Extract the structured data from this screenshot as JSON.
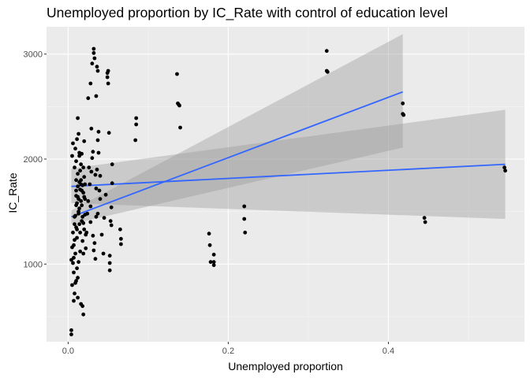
{
  "chart_data": {
    "type": "scatter",
    "title": "Unemployed proportion by IC_Rate with control of education level",
    "xlabel": "Unemployed proportion",
    "ylabel": "IC_Rate",
    "xlim": [
      -0.027,
      0.57
    ],
    "ylim": [
      260,
      3260
    ],
    "x_ticks": [
      0.0,
      0.2,
      0.4
    ],
    "x_tick_labels": [
      "0.0",
      "0.2",
      "0.4"
    ],
    "y_ticks": [
      1000,
      2000,
      3000
    ],
    "y_tick_labels": [
      "1000",
      "2000",
      "3000"
    ],
    "grid": true,
    "legend": "none",
    "colors": {
      "panel_background": "#ebebeb",
      "grid_major": "#ffffff",
      "grid_minor": "#f5f5f5",
      "points": "#000000",
      "fit_line": "#3366ff",
      "confidence_band": "#999999"
    },
    "points": [
      [
        0.004,
        1040
      ],
      [
        0.005,
        1160
      ],
      [
        0.005,
        800
      ],
      [
        0.006,
        1300
      ],
      [
        0.006,
        1010
      ],
      [
        0.007,
        1180
      ],
      [
        0.007,
        920
      ],
      [
        0.007,
        1060
      ],
      [
        0.008,
        1450
      ],
      [
        0.008,
        1230
      ],
      [
        0.008,
        1380
      ],
      [
        0.009,
        820
      ],
      [
        0.009,
        1100
      ],
      [
        0.01,
        1560
      ],
      [
        0.01,
        1350
      ],
      [
        0.01,
        1700
      ],
      [
        0.01,
        1650
      ],
      [
        0.01,
        1800
      ],
      [
        0.011,
        1250
      ],
      [
        0.011,
        960
      ],
      [
        0.011,
        1330
      ],
      [
        0.012,
        870
      ],
      [
        0.012,
        1640
      ],
      [
        0.012,
        1740
      ],
      [
        0.012,
        1860
      ],
      [
        0.013,
        1020
      ],
      [
        0.013,
        1480
      ],
      [
        0.013,
        1500
      ],
      [
        0.013,
        1620
      ],
      [
        0.014,
        2030
      ],
      [
        0.014,
        1780
      ],
      [
        0.014,
        1380
      ],
      [
        0.015,
        1710
      ],
      [
        0.015,
        1300
      ],
      [
        0.015,
        1890
      ],
      [
        0.015,
        1120
      ],
      [
        0.016,
        1600
      ],
      [
        0.016,
        1760
      ],
      [
        0.016,
        1950
      ],
      [
        0.016,
        1800
      ],
      [
        0.017,
        1560
      ],
      [
        0.017,
        1410
      ],
      [
        0.017,
        2050
      ],
      [
        0.018,
        1220
      ],
      [
        0.018,
        1450
      ],
      [
        0.018,
        1750
      ],
      [
        0.019,
        1680
      ],
      [
        0.019,
        1920
      ],
      [
        0.019,
        1100
      ],
      [
        0.019,
        1390
      ],
      [
        0.02,
        1830
      ],
      [
        0.02,
        2170
      ],
      [
        0.02,
        1330
      ],
      [
        0.021,
        1470
      ],
      [
        0.021,
        1620
      ],
      [
        0.022,
        1280
      ],
      [
        0.005,
        2030
      ],
      [
        0.006,
        2150
      ],
      [
        0.008,
        1920
      ],
      [
        0.009,
        2100
      ],
      [
        0.01,
        1980
      ],
      [
        0.011,
        2190
      ],
      [
        0.012,
        2390
      ],
      [
        0.013,
        2240
      ],
      [
        0.014,
        2060
      ],
      [
        0.008,
        720
      ],
      [
        0.012,
        680
      ],
      [
        0.016,
        620
      ],
      [
        0.018,
        600
      ],
      [
        0.019,
        520
      ],
      [
        0.007,
        650
      ],
      [
        0.01,
        840
      ],
      [
        0.004,
        370
      ],
      [
        0.004,
        330
      ],
      [
        0.009,
        1460
      ],
      [
        0.011,
        1580
      ],
      [
        0.014,
        1530
      ],
      [
        0.017,
        1700
      ],
      [
        0.02,
        1640
      ],
      [
        0.021,
        1760
      ],
      [
        0.022,
        1150
      ],
      [
        0.023,
        1300
      ],
      [
        0.024,
        1480
      ],
      [
        0.025,
        1600
      ],
      [
        0.026,
        1920
      ],
      [
        0.027,
        1760
      ],
      [
        0.028,
        1550
      ],
      [
        0.028,
        1400
      ],
      [
        0.029,
        1880
      ],
      [
        0.029,
        2290
      ],
      [
        0.03,
        2010
      ],
      [
        0.031,
        2070
      ],
      [
        0.031,
        1270
      ],
      [
        0.032,
        1130
      ],
      [
        0.033,
        1200
      ],
      [
        0.034,
        1050
      ],
      [
        0.034,
        1850
      ],
      [
        0.035,
        1720
      ],
      [
        0.035,
        1450
      ],
      [
        0.036,
        1900
      ],
      [
        0.037,
        1480
      ],
      [
        0.038,
        2260
      ],
      [
        0.038,
        2060
      ],
      [
        0.039,
        1700
      ],
      [
        0.025,
        2580
      ],
      [
        0.028,
        2720
      ],
      [
        0.03,
        2910
      ],
      [
        0.032,
        3010
      ],
      [
        0.032,
        3050
      ],
      [
        0.033,
        2960
      ],
      [
        0.035,
        2600
      ],
      [
        0.036,
        2880
      ],
      [
        0.037,
        2840
      ],
      [
        0.037,
        2180
      ],
      [
        0.04,
        1840
      ],
      [
        0.04,
        1620
      ],
      [
        0.042,
        1280
      ],
      [
        0.044,
        1100
      ],
      [
        0.045,
        1440
      ],
      [
        0.047,
        1660
      ],
      [
        0.049,
        2780
      ],
      [
        0.049,
        2820
      ],
      [
        0.05,
        2840
      ],
      [
        0.05,
        2720
      ],
      [
        0.051,
        2250
      ],
      [
        0.052,
        1080
      ],
      [
        0.052,
        1010
      ],
      [
        0.052,
        940
      ],
      [
        0.053,
        1410
      ],
      [
        0.054,
        1540
      ],
      [
        0.054,
        1370
      ],
      [
        0.055,
        1950
      ],
      [
        0.055,
        1770
      ],
      [
        0.065,
        1330
      ],
      [
        0.066,
        1240
      ],
      [
        0.066,
        1190
      ],
      [
        0.084,
        2180
      ],
      [
        0.085,
        2330
      ],
      [
        0.085,
        2390
      ],
      [
        0.136,
        2810
      ],
      [
        0.137,
        2530
      ],
      [
        0.138,
        2520
      ],
      [
        0.139,
        2510
      ],
      [
        0.14,
        2300
      ],
      [
        0.176,
        1290
      ],
      [
        0.177,
        1180
      ],
      [
        0.178,
        1020
      ],
      [
        0.182,
        1020
      ],
      [
        0.182,
        1090
      ],
      [
        0.182,
        990
      ],
      [
        0.22,
        1550
      ],
      [
        0.22,
        1430
      ],
      [
        0.221,
        1300
      ],
      [
        0.323,
        3030
      ],
      [
        0.323,
        2840
      ],
      [
        0.324,
        2830
      ],
      [
        0.418,
        2530
      ],
      [
        0.418,
        2430
      ],
      [
        0.419,
        2420
      ],
      [
        0.445,
        1440
      ],
      [
        0.446,
        1400
      ],
      [
        0.545,
        1920
      ],
      [
        0.546,
        1890
      ]
    ],
    "series": [
      {
        "x": [
          0.004,
          0.418
        ],
        "y": [
          1450,
          2640
        ],
        "ci_lower": [
          1380,
          2110
        ],
        "ci_upper": [
          1510,
          3190
        ]
      },
      {
        "x": [
          0.004,
          0.546
        ],
        "y": [
          1740,
          1950
        ],
        "ci_lower": [
          1580,
          1430
        ],
        "ci_upper": [
          1910,
          2470
        ]
      }
    ]
  }
}
